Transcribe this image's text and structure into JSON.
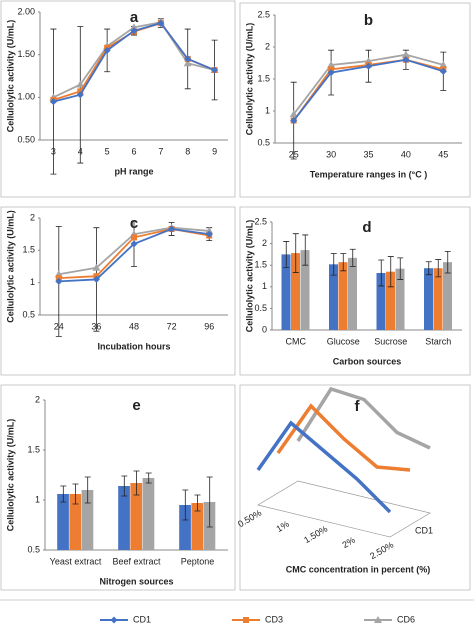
{
  "chart_data": [
    {
      "type": "line",
      "title": "a",
      "y_label": "Cellulolytic activity (U/mL)",
      "x_label": "pH range",
      "categories": [
        "3",
        "4",
        "5",
        "6",
        "7",
        "8",
        "9"
      ],
      "ylim": [
        0.5,
        2
      ],
      "yticks": [
        {
          "value": 0.5,
          "label": "0.50"
        },
        {
          "value": 1,
          "label": "1.00"
        },
        {
          "value": 1.5,
          "label": "1.50"
        },
        {
          "value": 2,
          "label": "2.00"
        }
      ],
      "series": [
        {
          "name": "CD1",
          "color": "#4472c4",
          "values": [
            0.95,
            1.03,
            1.55,
            1.78,
            1.87,
            1.45,
            1.32
          ],
          "errors": [
            0.85,
            0.8,
            0.25,
            0.05,
            0.05,
            0.35,
            0.35
          ]
        },
        {
          "name": "CD3",
          "color": "#ed7d31",
          "values": [
            0.97,
            1.07,
            1.58,
            1.77,
            1.87,
            1.45,
            1.32
          ]
        },
        {
          "name": "CD6",
          "color": "#a5a5a5",
          "values": [
            1.0,
            1.15,
            1.6,
            1.82,
            1.88,
            1.4,
            1.32
          ]
        }
      ]
    },
    {
      "type": "line",
      "title": "b",
      "y_label": "Cellulolytic activity (U/mL)",
      "x_label": "Temperature ranges in (°C )",
      "categories": [
        "25",
        "30",
        "35",
        "40",
        "45"
      ],
      "ylim": [
        0.5,
        2.5
      ],
      "yticks": [
        0.5,
        1,
        1.5,
        2,
        2.5
      ],
      "series": [
        {
          "name": "CD1",
          "color": "#4472c4",
          "values": [
            0.85,
            1.6,
            1.7,
            1.8,
            1.62
          ],
          "errors": [
            0.6,
            0.35,
            0.25,
            0.15,
            0.3
          ]
        },
        {
          "name": "CD3",
          "color": "#ed7d31",
          "values": [
            0.85,
            1.65,
            1.72,
            1.8,
            1.65
          ]
        },
        {
          "name": "CD6",
          "color": "#a5a5a5",
          "values": [
            0.95,
            1.72,
            1.78,
            1.88,
            1.72
          ]
        }
      ]
    },
    {
      "type": "line",
      "title": "c",
      "y_label": "Cellulolytic activity (U/mL)",
      "x_label": "Incubation hours",
      "categories": [
        "24",
        "36",
        "48",
        "72",
        "96"
      ],
      "ylim": [
        0.5,
        2
      ],
      "yticks": [
        0.5,
        1,
        1.5,
        2
      ],
      "series": [
        {
          "name": "CD1",
          "color": "#4472c4",
          "values": [
            1.02,
            1.05,
            1.6,
            1.83,
            1.75
          ],
          "errors": [
            0.85,
            0.8,
            0.35,
            0.1,
            0.1
          ]
        },
        {
          "name": "CD3",
          "color": "#ed7d31",
          "values": [
            1.07,
            1.1,
            1.7,
            1.83,
            1.73
          ]
        },
        {
          "name": "CD6",
          "color": "#a5a5a5",
          "values": [
            1.13,
            1.23,
            1.75,
            1.85,
            1.8
          ]
        }
      ]
    },
    {
      "type": "bar",
      "title": "d",
      "y_label": "Cellulolytic activity (U/mL)",
      "x_label": "Carbon sources",
      "categories": [
        "CMC",
        "Glucose",
        "Sucrose",
        "Starch"
      ],
      "ylim": [
        0,
        2.5
      ],
      "yticks": [
        0,
        0.5,
        1,
        1.5,
        2,
        2.5
      ],
      "series": [
        {
          "name": "CD1",
          "color": "#4472c4",
          "values": [
            1.75,
            1.52,
            1.32,
            1.43
          ],
          "errors": [
            0.3,
            0.25,
            0.3,
            0.15
          ]
        },
        {
          "name": "CD3",
          "color": "#ed7d31",
          "values": [
            1.78,
            1.57,
            1.35,
            1.43
          ],
          "errors": [
            0.45,
            0.2,
            0.35,
            0.2
          ]
        },
        {
          "name": "CD6",
          "color": "#a5a5a5",
          "values": [
            1.85,
            1.67,
            1.42,
            1.57
          ],
          "errors": [
            0.35,
            0.2,
            0.25,
            0.25
          ]
        }
      ]
    },
    {
      "type": "bar",
      "title": "e",
      "y_label": "Cellulolytic activity (U/mL)",
      "x_label": "Nitrogen sources",
      "categories": [
        "Yeast extract",
        "Beef extract",
        "Peptone"
      ],
      "ylim": [
        0.5,
        2
      ],
      "yticks": [
        0.5,
        1,
        1.5,
        2
      ],
      "series": [
        {
          "name": "CD1",
          "color": "#4472c4",
          "values": [
            1.06,
            1.14,
            0.95
          ],
          "errors": [
            0.08,
            0.1,
            0.15
          ]
        },
        {
          "name": "CD3",
          "color": "#ed7d31",
          "values": [
            1.06,
            1.17,
            0.97
          ],
          "errors": [
            0.1,
            0.12,
            0.08
          ]
        },
        {
          "name": "CD6",
          "color": "#a5a5a5",
          "values": [
            1.1,
            1.22,
            0.98
          ],
          "errors": [
            0.13,
            0.05,
            0.25
          ]
        }
      ]
    },
    {
      "type": "line3d",
      "title": "f",
      "x_label": "CMC concentration in percent (%)",
      "depth_label": "CD1",
      "categories": [
        "0.50%",
        "1%",
        "1.50%",
        "2%",
        "2.50%"
      ],
      "series": [
        {
          "name": "CD1",
          "color": "#4472c4",
          "values": [
            0.7,
            1.8,
            1.4,
            1.0,
            0.5
          ]
        },
        {
          "name": "CD3",
          "color": "#ed7d31",
          "values": [
            0.8,
            1.9,
            1.4,
            1.0,
            1.1
          ]
        },
        {
          "name": "CD6",
          "color": "#a5a5a5",
          "values": [
            0.8,
            2.0,
            1.95,
            1.45,
            1.3
          ]
        }
      ]
    }
  ]
}
